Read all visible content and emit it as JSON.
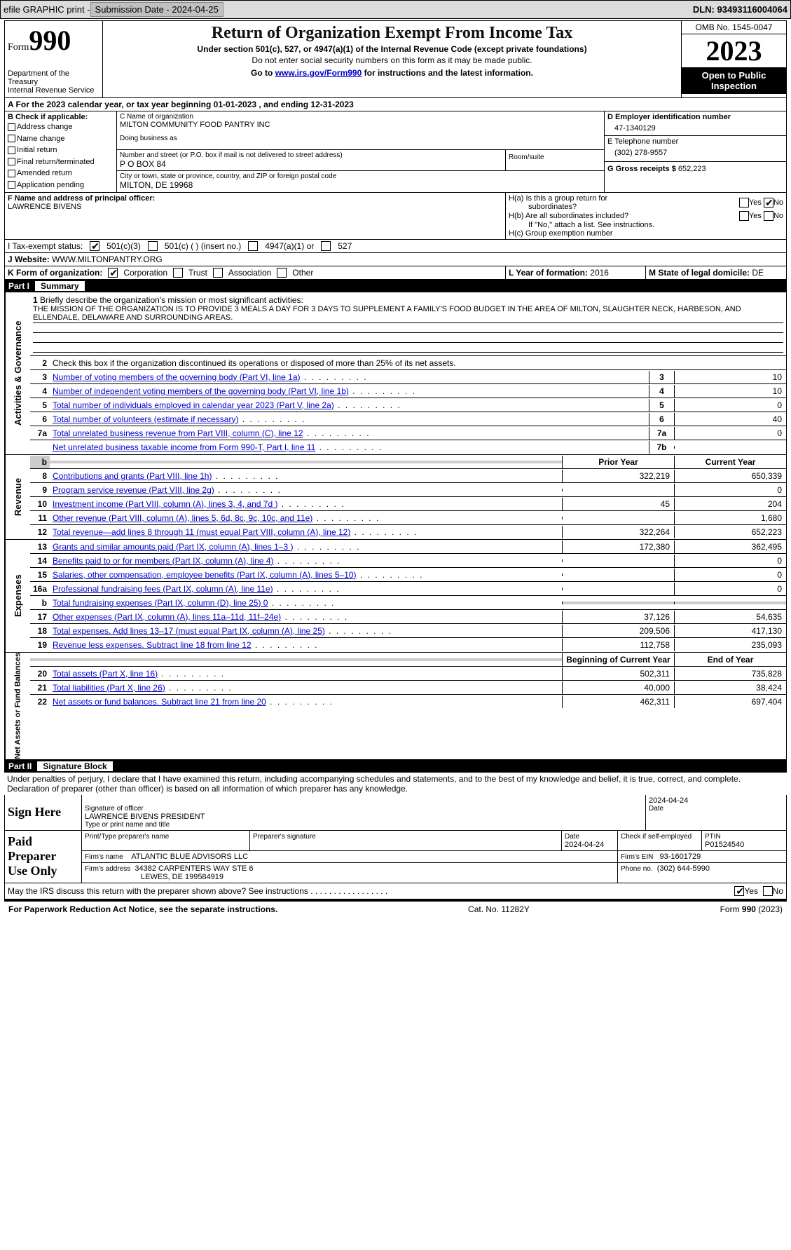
{
  "toolbar": {
    "efile": "efile GRAPHIC print -",
    "submission": "Submission Date - 2024-04-25",
    "dln_label": "DLN:",
    "dln": "93493116004064"
  },
  "header": {
    "form_prefix": "Form",
    "form_number": "990",
    "dept": "Department of the Treasury",
    "irs": "Internal Revenue Service",
    "title": "Return of Organization Exempt From Income Tax",
    "sub1": "Under section 501(c), 527, or 4947(a)(1) of the Internal Revenue Code (except private foundations)",
    "sub2": "Do not enter social security numbers on this form as it may be made public.",
    "sub3a": "Go to ",
    "sub3_link": "www.irs.gov/Form990",
    "sub3b": " for instructions and the latest information.",
    "omb": "OMB No. 1545-0047",
    "year": "2023",
    "inspection": "Open to Public Inspection"
  },
  "sectionA": {
    "text_a": "A  For the 2023 calendar year, or tax year beginning ",
    "begin": "01-01-2023",
    "mid": " , and ending ",
    "end": "12-31-2023"
  },
  "boxB": {
    "label": "B Check if applicable:",
    "items": [
      "Address change",
      "Name change",
      "Initial return",
      "Final return/terminated",
      "Amended return",
      "Application pending"
    ]
  },
  "boxC": {
    "name_lbl": "C Name of organization",
    "name": "MILTON COMMUNITY FOOD PANTRY INC",
    "dba_lbl": "Doing business as",
    "street_lbl": "Number and street (or P.O. box if mail is not delivered to street address)",
    "street": "P O BOX 84",
    "room_lbl": "Room/suite",
    "city_lbl": "City or town, state or province, country, and ZIP or foreign postal code",
    "city": "MILTON, DE  19968"
  },
  "boxD": {
    "lbl": "D Employer identification number",
    "val": "47-1340129"
  },
  "boxE": {
    "lbl": "E Telephone number",
    "val": "(302) 278-9557"
  },
  "boxG": {
    "lbl": "G Gross receipts $",
    "val": "652,223"
  },
  "boxF": {
    "lbl": "F  Name and address of principal officer:",
    "val": "LAWRENCE BIVENS"
  },
  "boxH": {
    "a": "H(a)  Is this a group return for",
    "a2": "subordinates?",
    "b": "H(b)  Are all subordinates included?",
    "b2": "If \"No,\" attach a list. See instructions.",
    "c": "H(c)  Group exemption number",
    "yes": "Yes",
    "no": "No"
  },
  "boxI": {
    "lbl": "I   Tax-exempt status:",
    "o1": "501(c)(3)",
    "o2": "501(c) (  ) (insert no.)",
    "o3": "4947(a)(1) or",
    "o4": "527"
  },
  "boxJ": {
    "lbl": "J   Website:",
    "val": "WWW.MILTONPANTRY.ORG"
  },
  "boxK": {
    "lbl": "K Form of organization:",
    "o1": "Corporation",
    "o2": "Trust",
    "o3": "Association",
    "o4": "Other"
  },
  "boxL": {
    "lbl": "L Year of formation:",
    "val": "2016"
  },
  "boxM": {
    "lbl": "M State of legal domicile:",
    "val": "DE"
  },
  "part1": {
    "label": "Part I",
    "title": "Summary"
  },
  "summary": {
    "line1_lbl": "Briefly describe the organization's mission or most significant activities:",
    "mission": "THE MISSION OF THE ORGANIZATION IS TO PROVIDE 3 MEALS A DAY FOR 3 DAYS TO SUPPLEMENT A FAMILY'S FOOD BUDGET IN THE AREA OF MILTON, SLAUGHTER NECK, HARBESON, AND ELLENDALE, DELAWARE AND SURROUNDING AREAS.",
    "line2": "Check this box          if the organization discontinued its operations or disposed of more than 25% of its net assets.",
    "rows": [
      {
        "n": "3",
        "t": "Number of voting members of the governing body (Part VI, line 1a)",
        "box": "3",
        "v": "10"
      },
      {
        "n": "4",
        "t": "Number of independent voting members of the governing body (Part VI, line 1b)",
        "box": "4",
        "v": "10"
      },
      {
        "n": "5",
        "t": "Total number of individuals employed in calendar year 2023 (Part V, line 2a)",
        "box": "5",
        "v": "0"
      },
      {
        "n": "6",
        "t": "Total number of volunteers (estimate if necessary)",
        "box": "6",
        "v": "40"
      },
      {
        "n": "7a",
        "t": "Total unrelated business revenue from Part VIII, column (C), line 12",
        "box": "7a",
        "v": "0"
      },
      {
        "n": "",
        "t": "Net unrelated business taxable income from Form 990-T, Part I, line 11",
        "box": "7b",
        "v": ""
      }
    ],
    "prioryear": "Prior Year",
    "curryear": "Current Year",
    "rev_rows": [
      {
        "n": "8",
        "t": "Contributions and grants (Part VIII, line 1h)",
        "p": "322,219",
        "c": "650,339"
      },
      {
        "n": "9",
        "t": "Program service revenue (Part VIII, line 2g)",
        "p": "",
        "c": "0"
      },
      {
        "n": "10",
        "t": "Investment income (Part VIII, column (A), lines 3, 4, and 7d )",
        "p": "45",
        "c": "204"
      },
      {
        "n": "11",
        "t": "Other revenue (Part VIII, column (A), lines 5, 6d, 8c, 9c, 10c, and 11e)",
        "p": "",
        "c": "1,680"
      },
      {
        "n": "12",
        "t": "Total revenue—add lines 8 through 11 (must equal Part VIII, column (A), line 12)",
        "p": "322,264",
        "c": "652,223"
      }
    ],
    "exp_rows": [
      {
        "n": "13",
        "t": "Grants and similar amounts paid (Part IX, column (A), lines 1–3 )",
        "p": "172,380",
        "c": "362,495"
      },
      {
        "n": "14",
        "t": "Benefits paid to or for members (Part IX, column (A), line 4)",
        "p": "",
        "c": "0"
      },
      {
        "n": "15",
        "t": "Salaries, other compensation, employee benefits (Part IX, column (A), lines 5–10)",
        "p": "",
        "c": "0"
      },
      {
        "n": "16a",
        "t": "Professional fundraising fees (Part IX, column (A), line 11e)",
        "p": "",
        "c": "0"
      },
      {
        "n": "b",
        "t": "Total fundraising expenses (Part IX, column (D), line 25) 0",
        "p": "shade",
        "c": "shade"
      },
      {
        "n": "17",
        "t": "Other expenses (Part IX, column (A), lines 11a–11d, 11f–24e)",
        "p": "37,126",
        "c": "54,635"
      },
      {
        "n": "18",
        "t": "Total expenses. Add lines 13–17 (must equal Part IX, column (A), line 25)",
        "p": "209,506",
        "c": "417,130"
      },
      {
        "n": "19",
        "t": "Revenue less expenses. Subtract line 18 from line 12",
        "p": "112,758",
        "c": "235,093"
      }
    ],
    "begyear": "Beginning of Current Year",
    "endyear": "End of Year",
    "na_rows": [
      {
        "n": "20",
        "t": "Total assets (Part X, line 16)",
        "p": "502,311",
        "c": "735,828"
      },
      {
        "n": "21",
        "t": "Total liabilities (Part X, line 26)",
        "p": "40,000",
        "c": "38,424"
      },
      {
        "n": "22",
        "t": "Net assets or fund balances. Subtract line 21 from line 20",
        "p": "462,311",
        "c": "697,404"
      }
    ],
    "side_ag": "Activities & Governance",
    "side_rev": "Revenue",
    "side_exp": "Expenses",
    "side_na": "Net Assets or Fund Balances"
  },
  "part2": {
    "label": "Part II",
    "title": "Signature Block"
  },
  "sigblock": {
    "perjury": "Under penalties of perjury, I declare that I have examined this return, including accompanying schedules and statements, and to the best of my knowledge and belief, it is true, correct, and complete. Declaration of preparer (other than officer) is based on all information of which preparer has any knowledge.",
    "signhere": "Sign Here",
    "sig_officer": "Signature of officer",
    "officer_name": "LAWRENCE BIVENS PRESIDENT",
    "printname": "Type or print name and title",
    "date1": "2024-04-24",
    "date_lbl": "Date",
    "paid": "Paid Preparer Use Only",
    "prep_name_lbl": "Print/Type preparer's name",
    "prep_sig_lbl": "Preparer's signature",
    "date2": "2024-04-24",
    "check_lbl": "Check          if self-employed",
    "ptin_lbl": "PTIN",
    "ptin": "P01524540",
    "firm_name_lbl": "Firm's name",
    "firm_name": "ATLANTIC BLUE ADVISORS LLC",
    "firm_ein_lbl": "Firm's EIN",
    "firm_ein": "93-1601729",
    "firm_addr_lbl": "Firm's address",
    "firm_addr1": "34382 CARPENTERS WAY STE 6",
    "firm_addr2": "LEWES, DE  199584919",
    "phone_lbl": "Phone no.",
    "phone": "(302) 644-5990",
    "may_irs": "May the IRS discuss this return with the preparer shown above? See instructions .  .  .  .  .  .  .  .  .  .  .  .  .  .  .  .  .",
    "yes": "Yes",
    "no": "No"
  },
  "footer": {
    "pra": "For Paperwork Reduction Act Notice, see the separate instructions.",
    "cat": "Cat. No. 11282Y",
    "form": "Form 990 (2023)"
  },
  "colors": {
    "toolbar_bg": "#dcdcdc",
    "link": "#0000cc",
    "black": "#000000",
    "shade": "#cccccc"
  }
}
